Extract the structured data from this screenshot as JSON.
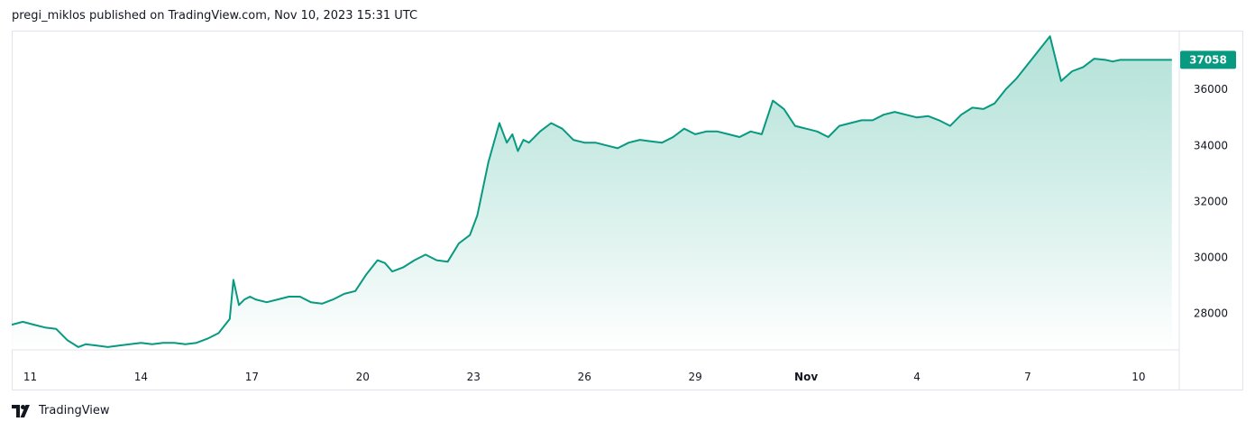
{
  "header": {
    "text": "pregi_miklos published on TradingView.com, Nov 10, 2023 15:31 UTC"
  },
  "footer": {
    "brand": "TradingView",
    "icon": "tradingview-logo-icon"
  },
  "colors": {
    "line": "#089981",
    "badge": "#089981",
    "fill_top": "#9ad8cb",
    "fill_bottom": "#ffffff",
    "text": "#131722",
    "grid": "#e0e3eb"
  },
  "chart_data": {
    "type": "area",
    "title": "",
    "xlabel": "",
    "ylabel": "",
    "x_tick_labels": [
      {
        "label": "11",
        "t": 0.5
      },
      {
        "label": "14",
        "t": 3.5
      },
      {
        "label": "17",
        "t": 6.5
      },
      {
        "label": "20",
        "t": 9.5
      },
      {
        "label": "23",
        "t": 12.5
      },
      {
        "label": "26",
        "t": 15.5
      },
      {
        "label": "29",
        "t": 18.5
      },
      {
        "label": "Nov",
        "t": 21.5,
        "bold": true
      },
      {
        "label": "4",
        "t": 24.5
      },
      {
        "label": "7",
        "t": 27.5
      },
      {
        "label": "10",
        "t": 30.5
      }
    ],
    "y_ticks": [
      28000,
      30000,
      32000,
      34000,
      36000
    ],
    "ylim": [
      26700,
      38100
    ],
    "xlim": [
      0,
      31.6
    ],
    "last_price": "37058",
    "series": [
      {
        "x": [
          0,
          0.3,
          0.6,
          0.9,
          1.2,
          1.5,
          1.8,
          2.0,
          2.3,
          2.6,
          2.9,
          3.2,
          3.5,
          3.8,
          4.1,
          4.4,
          4.7,
          5.0,
          5.3,
          5.6,
          5.9,
          6.0,
          6.15,
          6.3,
          6.45,
          6.6,
          6.9,
          7.2,
          7.5,
          7.8,
          8.1,
          8.4,
          8.7,
          9.0,
          9.3,
          9.6,
          9.9,
          10.1,
          10.3,
          10.6,
          10.9,
          11.2,
          11.5,
          11.8,
          12.1,
          12.4,
          12.6,
          12.9,
          13.2,
          13.4,
          13.55,
          13.7,
          13.85,
          14.0,
          14.3,
          14.6,
          14.9,
          15.2,
          15.5,
          15.8,
          16.1,
          16.4,
          16.7,
          17.0,
          17.3,
          17.6,
          17.9,
          18.2,
          18.5,
          18.8,
          19.1,
          19.4,
          19.7,
          20.0,
          20.3,
          20.6,
          20.9,
          21.2,
          21.5,
          21.8,
          22.1,
          22.4,
          22.7,
          23.0,
          23.3,
          23.6,
          23.9,
          24.2,
          24.5,
          24.8,
          25.1,
          25.4,
          25.7,
          26.0,
          26.3,
          26.6,
          26.9,
          27.2,
          27.5,
          27.8,
          28.1,
          28.4,
          28.7,
          29.0,
          29.3,
          29.6,
          29.8,
          30.0,
          30.2,
          30.4,
          30.6,
          30.8,
          31.0,
          31.2,
          31.4
        ],
        "y": [
          27600,
          27700,
          27600,
          27500,
          27450,
          27050,
          26800,
          26900,
          26850,
          26800,
          26850,
          26900,
          26950,
          26900,
          26950,
          26950,
          26900,
          26950,
          27100,
          27300,
          27800,
          29200,
          28300,
          28500,
          28600,
          28500,
          28400,
          28500,
          28600,
          28600,
          28400,
          28350,
          28500,
          28700,
          28800,
          29400,
          29900,
          29800,
          29500,
          29650,
          29900,
          30100,
          29900,
          29850,
          30500,
          30800,
          31500,
          33400,
          34800,
          34100,
          34400,
          33800,
          34200,
          34100,
          34500,
          34800,
          34600,
          34200,
          34100,
          34100,
          34000,
          33900,
          34100,
          34200,
          34150,
          34100,
          34300,
          34600,
          34400,
          34500,
          34500,
          34400,
          34300,
          34500,
          34400,
          35600,
          35300,
          34700,
          34600,
          34500,
          34300,
          34700,
          34800,
          34900,
          34900,
          35100,
          35200,
          35100,
          35000,
          35050,
          34900,
          34700,
          35100,
          35350,
          35300,
          35500,
          36000,
          36400,
          36900,
          37400,
          37900,
          36300,
          36650,
          36800,
          37100,
          37058,
          37000,
          37058,
          37058,
          37058,
          37058,
          37058,
          37058,
          37058,
          37058
        ]
      }
    ]
  }
}
